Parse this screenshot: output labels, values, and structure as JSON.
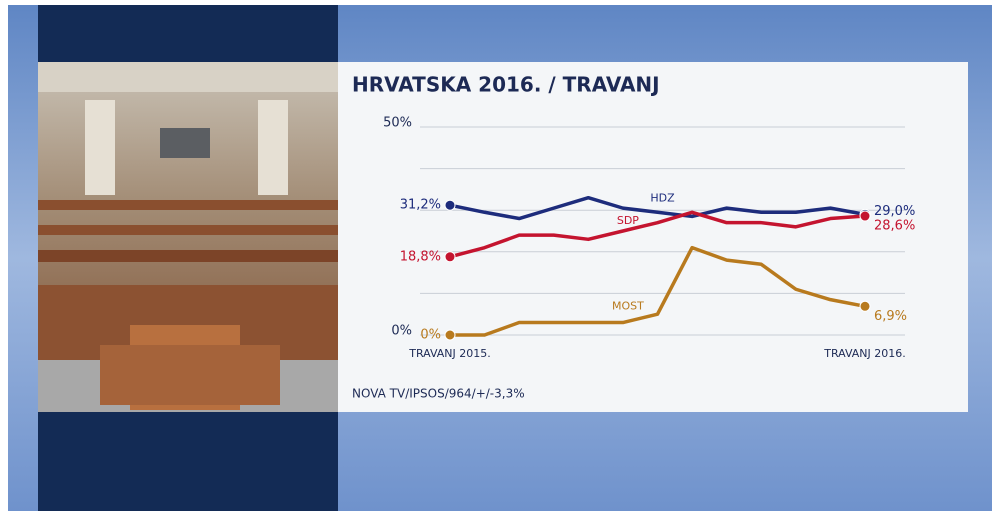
{
  "chart_data": {
    "type": "line",
    "title": "HRVATSKA 2016. / TRAVANJ",
    "source": "NOVA TV/IPSOS/964/+/-3,3%",
    "categories": [
      "TRAVANJ 2015.",
      null,
      null,
      null,
      null,
      null,
      null,
      null,
      null,
      null,
      null,
      null,
      "TRAVANJ 2016."
    ],
    "series": [
      {
        "name": "HDZ",
        "color": "#1d2c7c",
        "values": [
          31.2,
          29.5,
          28,
          30.5,
          33,
          30.5,
          29.5,
          28.5,
          30.5,
          29.5,
          29.5,
          30.5,
          29.0
        ],
        "value_labels": [
          "31,2%",
          null,
          null,
          null,
          null,
          null,
          null,
          null,
          null,
          null,
          null,
          null,
          "29,0%"
        ]
      },
      {
        "name": "SDP",
        "color": "#c4142f",
        "values": [
          18.8,
          21,
          24,
          24,
          23,
          25,
          27,
          29.5,
          27,
          27,
          26,
          28,
          28.6
        ],
        "value_labels": [
          "18,8%",
          null,
          null,
          null,
          null,
          null,
          null,
          null,
          null,
          null,
          null,
          null,
          "28,6%"
        ]
      },
      {
        "name": "MOST",
        "color": "#b87a1e",
        "values": [
          0,
          0,
          3,
          3,
          3,
          3,
          5,
          21,
          18,
          17,
          11,
          8.5,
          6.9
        ],
        "value_labels": [
          "0%",
          null,
          null,
          null,
          null,
          null,
          null,
          null,
          null,
          null,
          null,
          null,
          "6,9%"
        ]
      }
    ],
    "ylim": [
      0,
      50
    ],
    "yticks": [
      {
        "value": 0,
        "label": "0%"
      },
      {
        "value": 10,
        "label": null
      },
      {
        "value": 20,
        "label": null
      },
      {
        "value": 30,
        "label": null
      },
      {
        "value": 40,
        "label": null
      },
      {
        "value": 50,
        "label": "50%"
      }
    ],
    "grid": true
  }
}
